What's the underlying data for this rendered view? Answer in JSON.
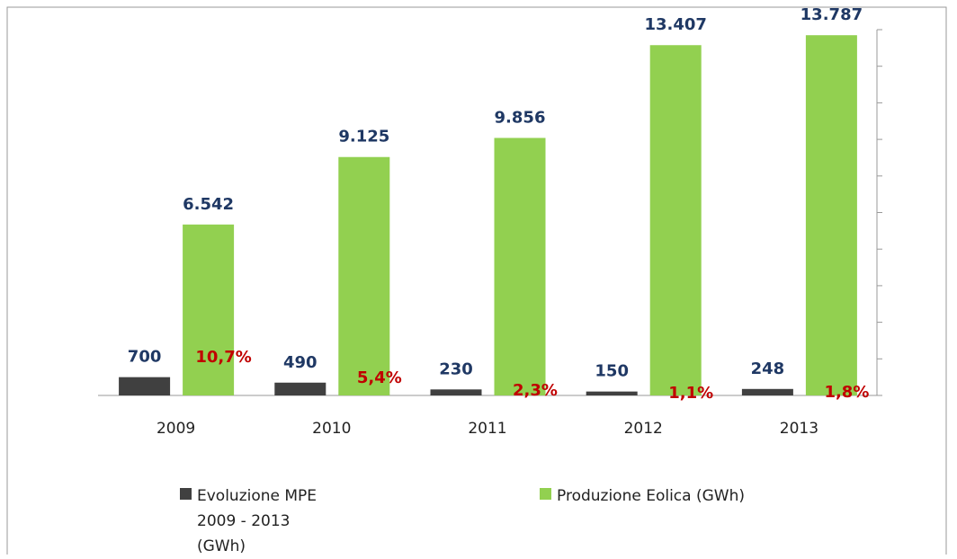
{
  "chart_data": {
    "type": "bar",
    "categories": [
      "2009",
      "2010",
      "2011",
      "2012",
      "2013"
    ],
    "series": [
      {
        "name": "Evoluzione MPE 2009 - 2013 (GWh)",
        "color": "#404040",
        "values": [
          700,
          490,
          230,
          150,
          248
        ],
        "value_labels": [
          "700",
          "490",
          "230",
          "150",
          "248"
        ]
      },
      {
        "name": "Produzione Eolica (GWh)",
        "color": "#92d050",
        "values": [
          6542,
          9125,
          9856,
          13407,
          13787
        ],
        "value_labels": [
          "6.542",
          "9.125",
          "9.856",
          "13.407",
          "13.787"
        ]
      }
    ],
    "annotations": [
      "10,7%",
      "5,4%",
      "2,3%",
      "1,1%",
      "1,8%"
    ],
    "ylim": [
      0,
      14000
    ],
    "yticks": [
      0,
      1400,
      2800,
      4200,
      5600,
      7000,
      8400,
      9800,
      11200,
      12600,
      14000
    ]
  }
}
